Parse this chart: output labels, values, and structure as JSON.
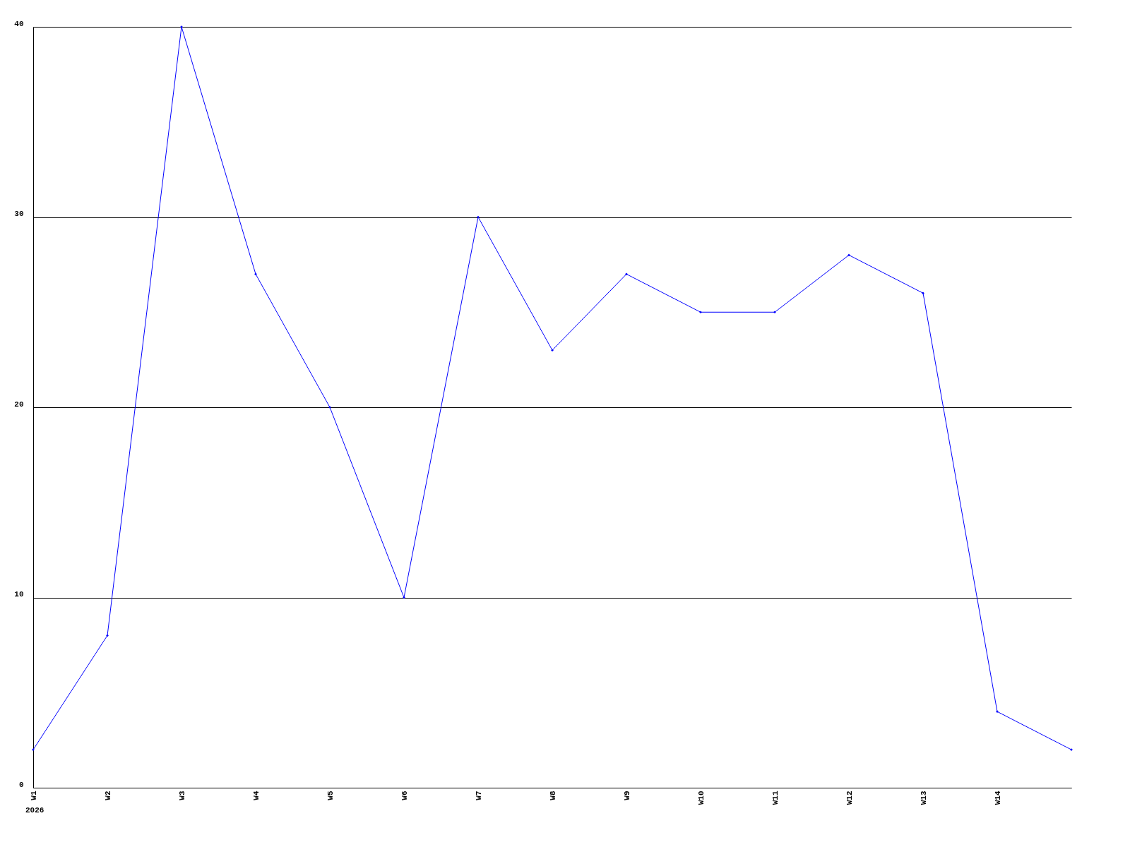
{
  "chart_data": {
    "type": "line",
    "categories": [
      "W1",
      "W2",
      "W3",
      "W4",
      "W5",
      "W6",
      "W7",
      "W8",
      "W9",
      "W10",
      "W11",
      "W12",
      "W13",
      "W14",
      null
    ],
    "series": [
      {
        "color": "#0000ff",
        "values": [
          2,
          8,
          40,
          27,
          20,
          10,
          30,
          23,
          27,
          25,
          25,
          28,
          26,
          4,
          2
        ]
      }
    ],
    "ylim": [
      0,
      40
    ],
    "yticks": [
      0,
      10,
      20,
      30,
      40
    ],
    "grid": "y",
    "marker": "diamond",
    "line_style": "solid",
    "legend": false,
    "annotations": [
      "2026"
    ]
  }
}
